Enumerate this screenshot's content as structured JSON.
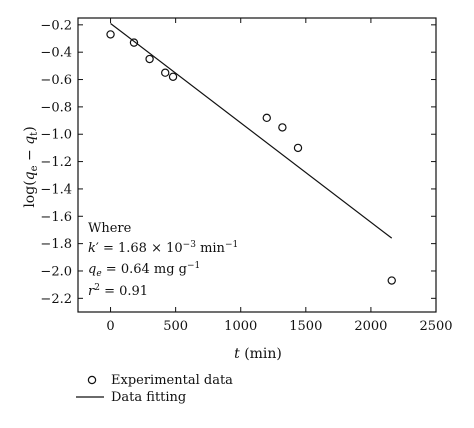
{
  "chart_data": {
    "type": "scatter",
    "xlabel": "t (min)",
    "xlabel_var": "t",
    "xlabel_unit": "(min)",
    "ylabel": "log(qe − qt)",
    "xlim": [
      -250,
      2500
    ],
    "ylim": [
      -2.3,
      -0.15
    ],
    "xticks": [
      0,
      500,
      1000,
      1500,
      2000,
      2500
    ],
    "xtick_labels": [
      "0",
      "500",
      "1000",
      "1500",
      "2000",
      "2500"
    ],
    "yticks": [
      -0.2,
      -0.4,
      -0.6,
      -0.8,
      -1.0,
      -1.2,
      -1.4,
      -1.6,
      -1.8,
      -2.0,
      -2.2
    ],
    "ytick_labels": [
      "−0.2",
      "−0.4",
      "−0.6",
      "−0.8",
      "−1.0",
      "−1.2",
      "−1.4",
      "−1.6",
      "−1.8",
      "−2.0",
      "−2.2"
    ],
    "grid": false,
    "legend_position": "bottom-left, below plot",
    "series": [
      {
        "name": "Experimental data",
        "marker": "open-circle",
        "x": [
          0,
          180,
          300,
          420,
          480,
          1200,
          1320,
          1440,
          2160
        ],
        "y": [
          -0.27,
          -0.33,
          -0.45,
          -0.55,
          -0.58,
          -0.88,
          -0.95,
          -1.1,
          -2.07
        ]
      },
      {
        "name": "Data fitting",
        "style": "line",
        "x": [
          0,
          2160
        ],
        "y": [
          -0.19,
          -1.76
        ]
      }
    ],
    "annotation": {
      "title": "Where",
      "k_line": "k′ = 1.68 × 10⁻³ min⁻¹",
      "qe_line": "qe = 0.64 mg g⁻¹",
      "r2_line": "r² = 0.91"
    },
    "colors": {
      "axis": "#111111",
      "marker": "#111111",
      "line": "#111111"
    }
  }
}
